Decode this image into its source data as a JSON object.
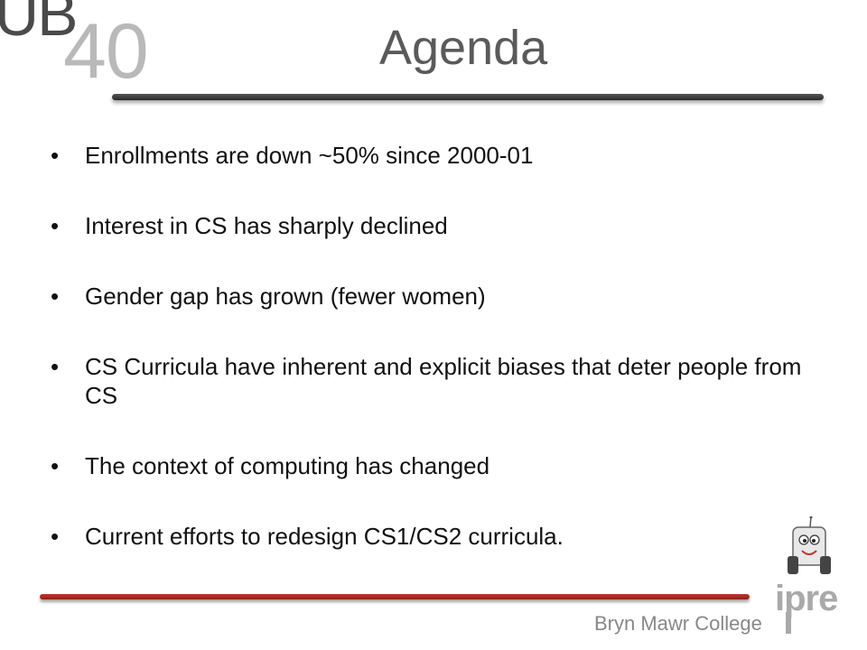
{
  "logo": {
    "letters": "UB",
    "number": "40"
  },
  "slide": {
    "title": "Agenda",
    "bullet_char": "•",
    "bullets": [
      "Enrollments are down ~50% since 2000-01",
      "Interest in CS has sharply declined",
      "Gender gap has grown (fewer women)",
      "CS Curricula have inherent and explicit biases that deter people from CS",
      "The context of computing has changed",
      "Current efforts to redesign CS1/CS2 curricula."
    ]
  },
  "footer": {
    "institution": "Bryn Mawr College",
    "brand": "ipre"
  },
  "colors": {
    "title": "#5a5a5a",
    "title_rule": "#333333",
    "bottom_rule": "#b03020",
    "footer_text": "#888888",
    "logo_40": "#b9b9b9",
    "logo_ub": "#4a4a4a"
  },
  "icons": [
    "robot-mascot-icon",
    "ipre-logo-icon"
  ]
}
